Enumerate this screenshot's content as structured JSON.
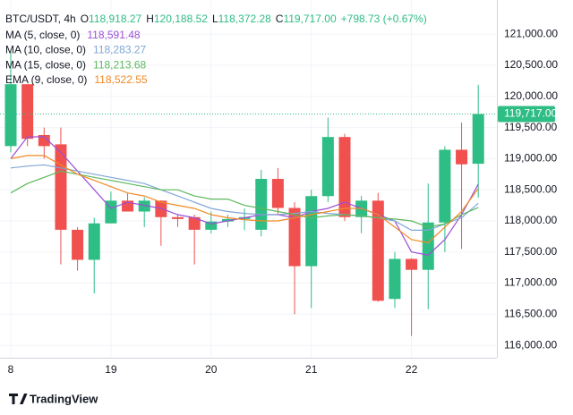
{
  "chart_data": {
    "type": "candlestick",
    "symbol": "BTC/USDT, 4h",
    "ohlc_legend": [
      {
        "label": "O",
        "value": "118,918.27"
      },
      {
        "label": "H",
        "value": "120,188.52"
      },
      {
        "label": "L",
        "value": "118,372.28"
      },
      {
        "label": "C",
        "value": "119,717.00"
      }
    ],
    "change": "+798.73 (+0.67%)",
    "categories": [
      "8",
      null,
      null,
      null,
      null,
      null,
      "19",
      null,
      null,
      null,
      null,
      null,
      "20",
      null,
      null,
      null,
      null,
      null,
      "21",
      null,
      null,
      null,
      null,
      null,
      "22",
      null,
      null,
      null,
      null
    ],
    "up_color": "#2ebd85",
    "down_color": "#f0514f",
    "open": [
      119202,
      120196,
      119380,
      119230,
      117857,
      117374,
      117960,
      118325,
      118150,
      118325,
      118060,
      118060,
      117857,
      117990,
      118030,
      117857,
      118675,
      118208,
      117272,
      118398,
      119348,
      118061,
      118325,
      116745,
      117389,
      117213,
      117974,
      119143,
      118918.27
    ],
    "high": [
      120737,
      120196,
      119500,
      119500,
      117900,
      118050,
      118470,
      118440,
      118380,
      118330,
      118100,
      118100,
      118150,
      118100,
      118200,
      118820,
      118850,
      118300,
      118500,
      119660,
      119400,
      118400,
      118450,
      117500,
      117400,
      118600,
      119200,
      119580,
      120188.52
    ],
    "low": [
      119100,
      119202,
      119000,
      117300,
      117200,
      116833,
      117960,
      118150,
      117900,
      117600,
      117900,
      117300,
      117800,
      117900,
      117850,
      117750,
      118100,
      116500,
      116600,
      118300,
      118000,
      117800,
      116700,
      116600,
      116150,
      116580,
      117500,
      117550,
      118372.28
    ],
    "close": [
      120196,
      119319,
      119202,
      117857,
      117374,
      117960,
      118325,
      118150,
      118325,
      118060,
      118030,
      117857,
      117990,
      118030,
      118060,
      118675,
      118208,
      117272,
      118398,
      119348,
      118061,
      118325,
      116716,
      117389,
      117213,
      117974,
      119143,
      118909,
      119717
    ],
    "series": [
      {
        "name": "MA (5, close, 0)",
        "color": "#9c4fd6",
        "value_label": "118,591.48",
        "values": [
          119000,
          119350,
          119350,
          119100,
          118800,
          118500,
          118200,
          118300,
          118250,
          118200,
          118100,
          118050,
          117950,
          118000,
          118050,
          118100,
          118100,
          118050,
          118150,
          118200,
          118300,
          118200,
          118100,
          118000,
          117500,
          117450,
          117700,
          118100,
          118591.48
        ]
      },
      {
        "name": "MA (10, close, 0)",
        "color": "#7fa6d6",
        "value_label": "118,283.27",
        "values": [
          118850,
          118880,
          118900,
          118850,
          118800,
          118750,
          118700,
          118650,
          118600,
          118500,
          118400,
          118300,
          118200,
          118150,
          118120,
          118100,
          118100,
          118120,
          118150,
          118120,
          118100,
          118080,
          118050,
          118000,
          117850,
          117850,
          117950,
          118050,
          118283.27
        ]
      },
      {
        "name": "MA (15, close, 0)",
        "color": "#5cb85c",
        "value_label": "118,213.68",
        "values": [
          118450,
          118600,
          118700,
          118800,
          118750,
          118700,
          118650,
          118600,
          118550,
          118500,
          118500,
          118400,
          118350,
          118350,
          118250,
          118200,
          118150,
          118100,
          118050,
          118080,
          118100,
          118080,
          118050,
          118030,
          118000,
          117900,
          117950,
          118100,
          118213.68
        ]
      },
      {
        "name": "EMA (9, close, 0)",
        "color": "#f08a24",
        "value_label": "118,522.55",
        "values": [
          119000,
          119050,
          119050,
          118900,
          118750,
          118650,
          118550,
          118450,
          118400,
          118300,
          118250,
          118200,
          118100,
          118050,
          118020,
          118000,
          118000,
          118050,
          118100,
          118150,
          118200,
          118200,
          118100,
          117900,
          117700,
          117650,
          117900,
          118150,
          118522.55
        ]
      }
    ],
    "current_price": {
      "value": 119717,
      "label": "119,717.00"
    },
    "ylim": [
      115800,
      121550
    ],
    "yticks": [
      {
        "value": 116000,
        "label": "116,000.00"
      },
      {
        "value": 116500,
        "label": "116,500.00"
      },
      {
        "value": 117000,
        "label": "117,000.00"
      },
      {
        "value": 117500,
        "label": "117,500.00"
      },
      {
        "value": 118000,
        "label": "118,000.00"
      },
      {
        "value": 118500,
        "label": "118,500.00"
      },
      {
        "value": 119000,
        "label": "119,000.00"
      },
      {
        "value": 119500,
        "label": "119,500.00"
      },
      {
        "value": 120000,
        "label": "120,000.00"
      },
      {
        "value": 120500,
        "label": "120,500.00"
      },
      {
        "value": 121000,
        "label": "121,000.00"
      }
    ],
    "grid": true,
    "branding": "TradingView"
  }
}
